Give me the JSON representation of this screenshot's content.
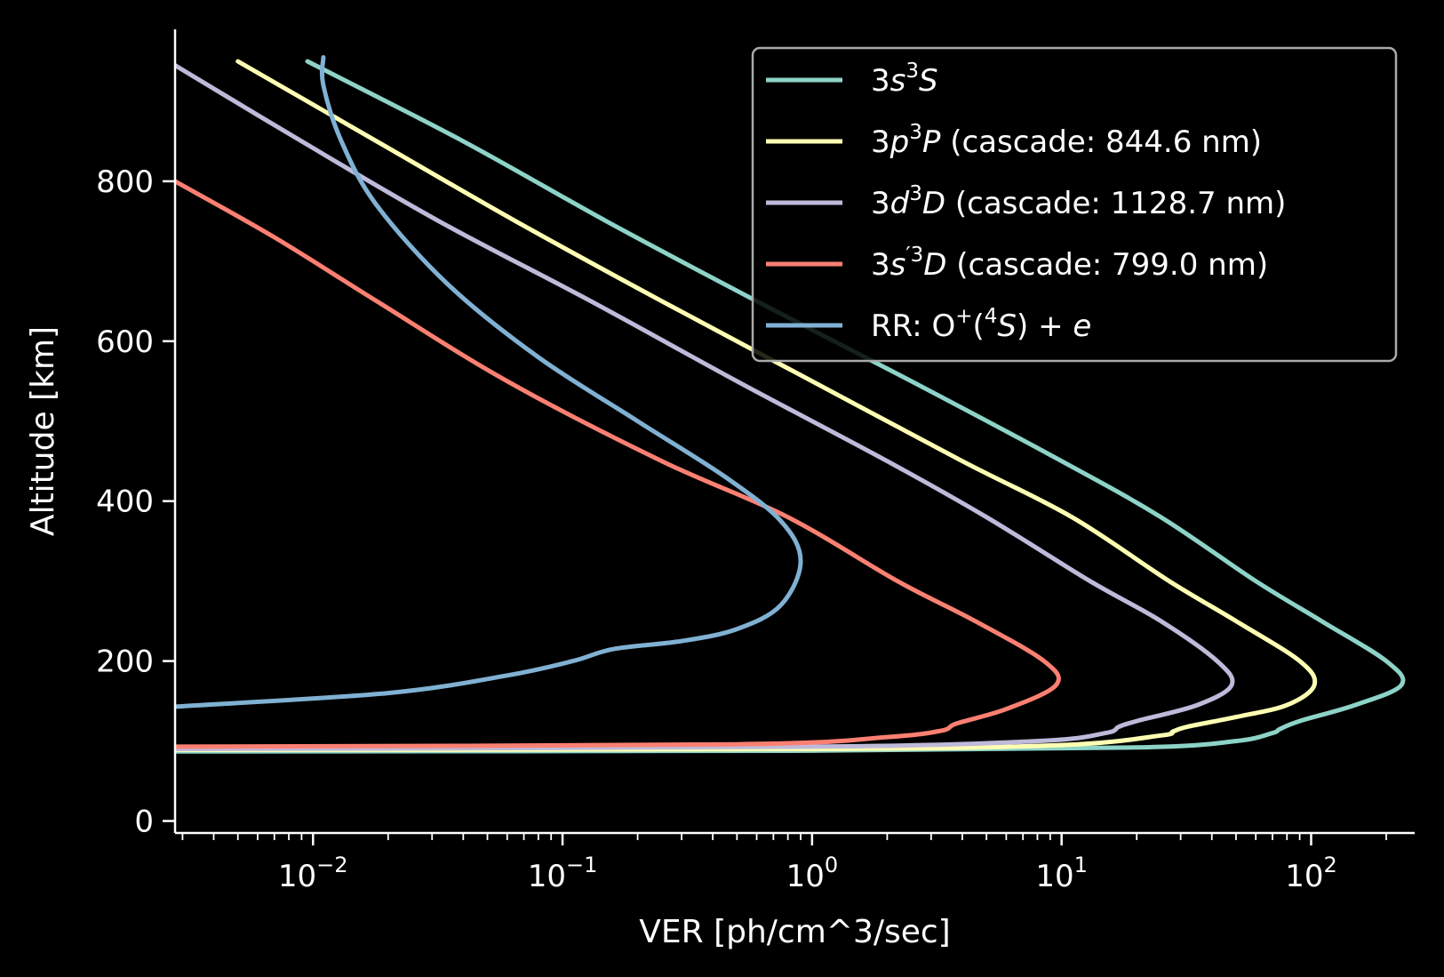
{
  "chart_data": {
    "type": "line",
    "xlabel": "VER [ph/cm^3/sec]",
    "ylabel": "Altitude [km]",
    "xscale": "log",
    "xlim": [
      0.0028,
      260
    ],
    "ylim": [
      -15,
      990
    ],
    "x_ticks": [
      {
        "value": 0.01,
        "base": "10",
        "exp": "−2"
      },
      {
        "value": 0.1,
        "base": "10",
        "exp": "−1"
      },
      {
        "value": 1,
        "base": "10",
        "exp": "0"
      },
      {
        "value": 10,
        "base": "10",
        "exp": "1"
      },
      {
        "value": 100,
        "base": "10",
        "exp": "2"
      }
    ],
    "y_ticks": [
      {
        "value": 0,
        "label": "0"
      },
      {
        "value": 200,
        "label": "200"
      },
      {
        "value": 400,
        "label": "400"
      },
      {
        "value": 600,
        "label": "600"
      },
      {
        "value": 800,
        "label": "800"
      }
    ],
    "grid": false,
    "legend_position": "top-right",
    "series": [
      {
        "name": "3s³S",
        "label_parts": [
          {
            "t": "3",
            "i": false
          },
          {
            "t": "s",
            "i": true
          },
          {
            "t": "3",
            "s": true
          },
          {
            "t": "S",
            "i": true
          }
        ],
        "color": "#8dd3c7",
        "points": [
          [
            0.0028,
            87
          ],
          [
            1,
            88
          ],
          [
            20,
            92
          ],
          [
            50,
            100
          ],
          [
            70,
            110
          ],
          [
            75,
            115
          ],
          [
            90,
            125
          ],
          [
            150,
            145
          ],
          [
            230,
            170
          ],
          [
            200,
            200
          ],
          [
            110,
            250
          ],
          [
            60,
            300
          ],
          [
            25,
            380
          ],
          [
            10,
            450
          ],
          [
            2.5,
            550
          ],
          [
            0.6,
            650
          ],
          [
            0.15,
            750
          ],
          [
            0.04,
            850
          ],
          [
            0.0095,
            950
          ]
        ]
      },
      {
        "name": "3p³P (cascade: 844.6 nm)",
        "label_parts": [
          {
            "t": "3",
            "i": false
          },
          {
            "t": "p",
            "i": true
          },
          {
            "t": "3",
            "s": true
          },
          {
            "t": "P",
            "i": true
          },
          {
            "t": " (cascade: 844.6 nm)",
            "i": false
          }
        ],
        "color": "#ffffb3",
        "points": [
          [
            0.0028,
            89
          ],
          [
            1,
            90
          ],
          [
            10,
            95
          ],
          [
            25,
            107
          ],
          [
            28,
            112
          ],
          [
            32,
            118
          ],
          [
            50,
            130
          ],
          [
            80,
            145
          ],
          [
            103,
            170
          ],
          [
            90,
            200
          ],
          [
            50,
            250
          ],
          [
            27,
            300
          ],
          [
            11,
            380
          ],
          [
            4,
            450
          ],
          [
            1,
            550
          ],
          [
            0.25,
            650
          ],
          [
            0.065,
            750
          ],
          [
            0.018,
            850
          ],
          [
            0.005,
            950
          ]
        ]
      },
      {
        "name": "3d³D (cascade: 1128.7 nm)",
        "label_parts": [
          {
            "t": "3",
            "i": false
          },
          {
            "t": "d",
            "i": true
          },
          {
            "t": "3",
            "s": true
          },
          {
            "t": "D",
            "i": true
          },
          {
            "t": " (cascade: 1128.7 nm)",
            "i": false
          }
        ],
        "color": "#bebada",
        "points": [
          [
            0.0028,
            90
          ],
          [
            1,
            93
          ],
          [
            8,
            100
          ],
          [
            15,
            110
          ],
          [
            17,
            118
          ],
          [
            20,
            125
          ],
          [
            35,
            145
          ],
          [
            48,
            170
          ],
          [
            42,
            200
          ],
          [
            25,
            250
          ],
          [
            13,
            300
          ],
          [
            5,
            380
          ],
          [
            2,
            450
          ],
          [
            0.5,
            550
          ],
          [
            0.13,
            650
          ],
          [
            0.032,
            750
          ],
          [
            0.009,
            850
          ],
          [
            0.0028,
            945
          ]
        ]
      },
      {
        "name": "3s′³D (cascade: 799.0 nm)",
        "label_parts": [
          {
            "t": "3",
            "i": false
          },
          {
            "t": "s",
            "i": true
          },
          {
            "t": "′",
            "s": true
          },
          {
            "t": "3",
            "s": true
          },
          {
            "t": "D",
            "i": true
          },
          {
            "t": " (cascade: 799.0 nm)",
            "i": false
          }
        ],
        "color": "#fb8072",
        "points": [
          [
            0.0028,
            93
          ],
          [
            0.5,
            96
          ],
          [
            2,
            105
          ],
          [
            3.3,
            113
          ],
          [
            3.8,
            122
          ],
          [
            6,
            140
          ],
          [
            9.5,
            170
          ],
          [
            8.5,
            200
          ],
          [
            4.5,
            250
          ],
          [
            2.2,
            300
          ],
          [
            0.8,
            380
          ],
          [
            0.25,
            450
          ],
          [
            0.06,
            550
          ],
          [
            0.018,
            650
          ],
          [
            0.007,
            730
          ],
          [
            0.0028,
            800
          ]
        ]
      },
      {
        "name": "RR: O⁺(⁴S) + e",
        "label_parts": [
          {
            "t": "RR: O",
            "i": false
          },
          {
            "t": "+",
            "s": true
          },
          {
            "t": "(",
            "i": false
          },
          {
            "t": "4",
            "s": true
          },
          {
            "t": "S",
            "i": true
          },
          {
            "t": ") + ",
            "i": false
          },
          {
            "t": "e",
            "i": true
          }
        ],
        "color": "#80b1d3",
        "points": [
          [
            0.0028,
            143
          ],
          [
            0.02,
            160
          ],
          [
            0.06,
            182
          ],
          [
            0.11,
            200
          ],
          [
            0.16,
            215
          ],
          [
            0.3,
            225
          ],
          [
            0.5,
            240
          ],
          [
            0.75,
            270
          ],
          [
            0.9,
            325
          ],
          [
            0.75,
            375
          ],
          [
            0.45,
            430
          ],
          [
            0.2,
            500
          ],
          [
            0.08,
            580
          ],
          [
            0.035,
            670
          ],
          [
            0.018,
            770
          ],
          [
            0.013,
            850
          ],
          [
            0.011,
            920
          ],
          [
            0.011,
            955
          ]
        ]
      }
    ]
  }
}
